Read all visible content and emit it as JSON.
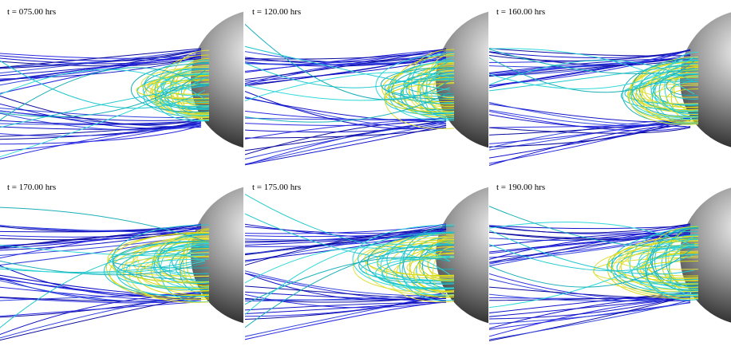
{
  "panels": [
    {
      "label": "t = 075.00 hrs"
    },
    {
      "label": "t = 120.00 hrs"
    },
    {
      "label": "t = 160.00 hrs"
    },
    {
      "label": "t = 170.00 hrs"
    },
    {
      "label": "t = 175.00 hrs"
    },
    {
      "label": "t = 190.00 hrs"
    }
  ]
}
